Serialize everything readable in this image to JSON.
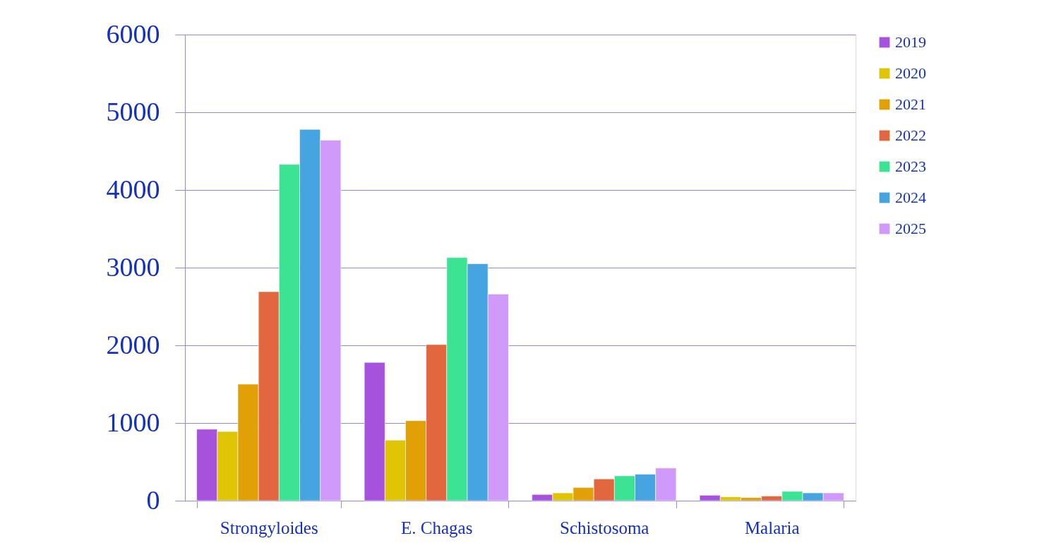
{
  "chart_data": {
    "type": "bar",
    "categories": [
      "Strongyloides",
      "E. Chagas",
      "Schistosoma",
      "Malaria"
    ],
    "series": [
      {
        "name": "2019",
        "color": "#a752dc",
        "values": [
          920,
          1780,
          80,
          70
        ]
      },
      {
        "name": "2020",
        "color": "#e0c406",
        "values": [
          890,
          780,
          100,
          50
        ]
      },
      {
        "name": "2021",
        "color": "#e0a006",
        "values": [
          1500,
          1030,
          170,
          40
        ]
      },
      {
        "name": "2022",
        "color": "#e2673e",
        "values": [
          2690,
          2010,
          280,
          60
        ]
      },
      {
        "name": "2023",
        "color": "#3ce392",
        "values": [
          4330,
          3130,
          320,
          120
        ]
      },
      {
        "name": "2024",
        "color": "#46a4e0",
        "values": [
          4780,
          3050,
          340,
          100
        ]
      },
      {
        "name": "2025",
        "color": "#cf9afa",
        "values": [
          4640,
          2660,
          420,
          100
        ]
      }
    ],
    "ylim": [
      0,
      6000
    ],
    "yticks": [
      0,
      1000,
      2000,
      3000,
      4000,
      5000,
      6000
    ],
    "grid": "y",
    "legend": "right"
  }
}
